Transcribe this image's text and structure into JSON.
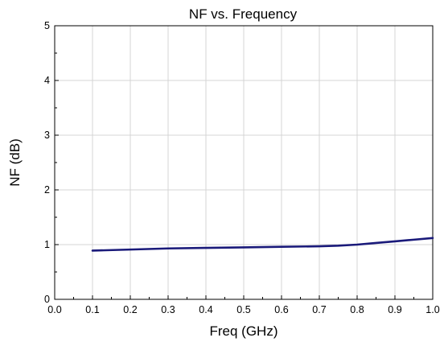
{
  "chart_data": {
    "type": "line",
    "title": "NF vs. Frequency",
    "xlabel": "Freq (GHz)",
    "ylabel": "NF (dB)",
    "xlim": [
      0.0,
      1.0
    ],
    "ylim": [
      0,
      5
    ],
    "xticks": [
      "0.0",
      "0.1",
      "0.2",
      "0.3",
      "0.4",
      "0.5",
      "0.6",
      "0.7",
      "0.8",
      "0.9",
      "1.0"
    ],
    "yticks": [
      "0",
      "1",
      "2",
      "3",
      "4",
      "5"
    ],
    "grid": true,
    "legend": "none",
    "series": [
      {
        "color": "#1a1a7a",
        "x": [
          0.1,
          0.2,
          0.3,
          0.4,
          0.5,
          0.6,
          0.7,
          0.75,
          0.8,
          0.85,
          0.9,
          0.95,
          1.0
        ],
        "y": [
          0.89,
          0.91,
          0.93,
          0.94,
          0.95,
          0.96,
          0.97,
          0.98,
          1.0,
          1.03,
          1.06,
          1.09,
          1.12
        ]
      }
    ]
  }
}
